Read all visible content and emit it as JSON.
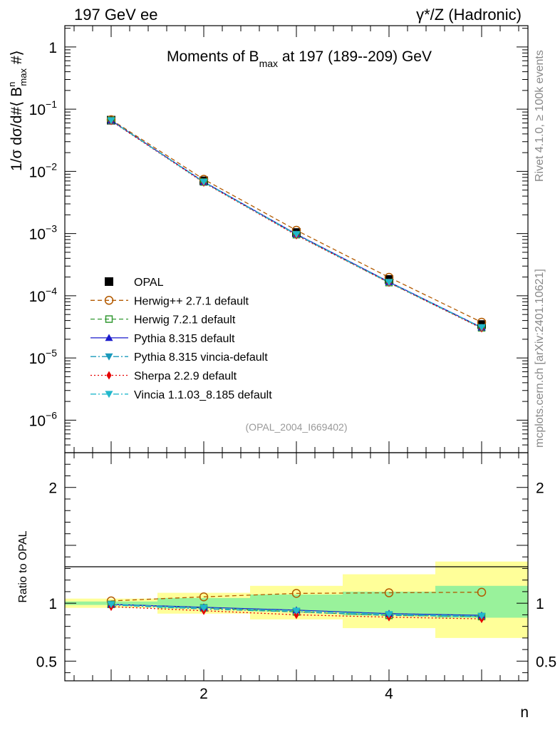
{
  "header": {
    "left": "197 GeV ee",
    "right": "γ*/Z (Hadronic)"
  },
  "side": {
    "rivet": "Rivet 4.1.0, ≥ 100k events",
    "mcplots": "mcplots.cern.ch [arXiv:2401.10621]"
  },
  "chart_data": [
    {
      "type": "line",
      "panel": "main",
      "title": "Moments of B_max at 197 (189--209) GeV",
      "title_parts": {
        "pre": "Moments of B",
        "sub": "max",
        "post": " at 197 (189--209) GeV"
      },
      "ylabel": "1/σ dσ/d#⟨ B^n_max #⟩",
      "ylabel_parts": {
        "a": "1/σ  dσ/d#⟨ B",
        "sup": "n",
        "sub": "max",
        "b": " #⟩"
      },
      "yscale": "log",
      "ylim": [
        3e-07,
        2.2
      ],
      "xlim": [
        0.5,
        5.5
      ],
      "ytick_labels": [
        {
          "value": 1,
          "base": "1",
          "exp": ""
        },
        {
          "value": 0.1,
          "base": "10",
          "exp": "−1"
        },
        {
          "value": 0.01,
          "base": "10",
          "exp": "−2"
        },
        {
          "value": 0.001,
          "base": "10",
          "exp": "−3"
        },
        {
          "value": 0.0001,
          "base": "10",
          "exp": "−4"
        },
        {
          "value": 1e-05,
          "base": "10",
          "exp": "−5"
        },
        {
          "value": 1e-06,
          "base": "10",
          "exp": "−6"
        }
      ],
      "legend_position": "lower-left",
      "watermark": "(OPAL_2004_I669402)",
      "x": [
        1,
        2,
        3,
        4,
        5
      ],
      "series": [
        {
          "name": "OPAL",
          "color": "#000000",
          "marker": "square-filled",
          "dash": "none",
          "values": [
            0.0665,
            0.00705,
            0.00104,
            0.000183,
            3.45e-05
          ]
        },
        {
          "name": "Herwig++ 2.7.1 default",
          "color": "#b35a00",
          "marker": "circle-open",
          "dash": "6,4",
          "values": [
            0.0678,
            0.00745,
            0.00113,
            0.000198,
            3.75e-05
          ]
        },
        {
          "name": "Herwig 7.2.1 default",
          "color": "#339933",
          "marker": "square-open",
          "dash": "6,4",
          "values": [
            0.066,
            0.00675,
            0.00096,
            0.000163,
            3.05e-05
          ]
        },
        {
          "name": "Pythia 8.315 default",
          "color": "#1a1acc",
          "marker": "triangle-up",
          "dash": "none",
          "values": [
            0.066,
            0.0068,
            0.00098,
            0.000167,
            3.1e-05
          ]
        },
        {
          "name": "Pythia 8.315 vincia-default",
          "color": "#1a99bb",
          "marker": "triangle-down",
          "dash": "8,3,2,3",
          "values": [
            0.0655,
            0.0067,
            0.00096,
            0.000164,
            3.05e-05
          ]
        },
        {
          "name": "Sherpa 2.2.9 default",
          "color": "#e60000",
          "marker": "diamond",
          "dash": "2,3",
          "values": [
            0.0645,
            0.0066,
            0.00094,
            0.000162,
            3e-05
          ]
        },
        {
          "name": "Vincia 1.1.03_8.185 default",
          "color": "#22b8cc",
          "marker": "triangle-down",
          "dash": "8,3,2,3",
          "values": [
            0.0658,
            0.00675,
            0.00097,
            0.000165,
            3.1e-05
          ]
        }
      ]
    },
    {
      "type": "line",
      "panel": "ratio",
      "ylabel": "Ratio to OPAL",
      "xlabel": "n",
      "ylim": [
        0.33,
        2.3
      ],
      "xlim": [
        0.5,
        5.5
      ],
      "ytick_labels": [
        "0.5",
        "1",
        "2"
      ],
      "xtick_labels": [
        "2",
        "4"
      ],
      "bands": [
        {
          "x": [
            0.5,
            1.5
          ],
          "green": [
            0.985,
            1.015
          ],
          "yellow": [
            0.96,
            1.04
          ]
        },
        {
          "x": [
            1.5,
            2.5
          ],
          "green": [
            0.955,
            1.045
          ],
          "yellow": [
            0.91,
            1.09
          ]
        },
        {
          "x": [
            2.5,
            3.5
          ],
          "green": [
            0.93,
            1.075
          ],
          "yellow": [
            0.86,
            1.15
          ]
        },
        {
          "x": [
            3.5,
            4.5
          ],
          "green": [
            0.895,
            1.1
          ],
          "yellow": [
            0.785,
            1.25
          ]
        },
        {
          "x": [
            4.5,
            5.5
          ],
          "green": [
            0.875,
            1.15
          ],
          "yellow": [
            0.7,
            1.36
          ]
        }
      ],
      "x": [
        1,
        2,
        3,
        4,
        5
      ],
      "series": [
        {
          "name": "Herwig++ 2.7.1 default",
          "values": [
            1.02,
            1.055,
            1.085,
            1.09,
            1.095
          ]
        },
        {
          "name": "Herwig 7.2.1 default",
          "values": [
            0.99,
            0.96,
            0.925,
            0.895,
            0.885
          ]
        },
        {
          "name": "Pythia 8.315 default",
          "values": [
            0.99,
            0.965,
            0.94,
            0.91,
            0.895
          ]
        },
        {
          "name": "Pythia 8.315 vincia-default",
          "values": [
            0.985,
            0.95,
            0.925,
            0.895,
            0.885
          ]
        },
        {
          "name": "Sherpa 2.2.9 default",
          "values": [
            0.97,
            0.935,
            0.9,
            0.88,
            0.865
          ]
        },
        {
          "name": "Vincia 1.1.03_8.185 default",
          "values": [
            0.99,
            0.96,
            0.935,
            0.905,
            0.89
          ]
        }
      ]
    }
  ]
}
